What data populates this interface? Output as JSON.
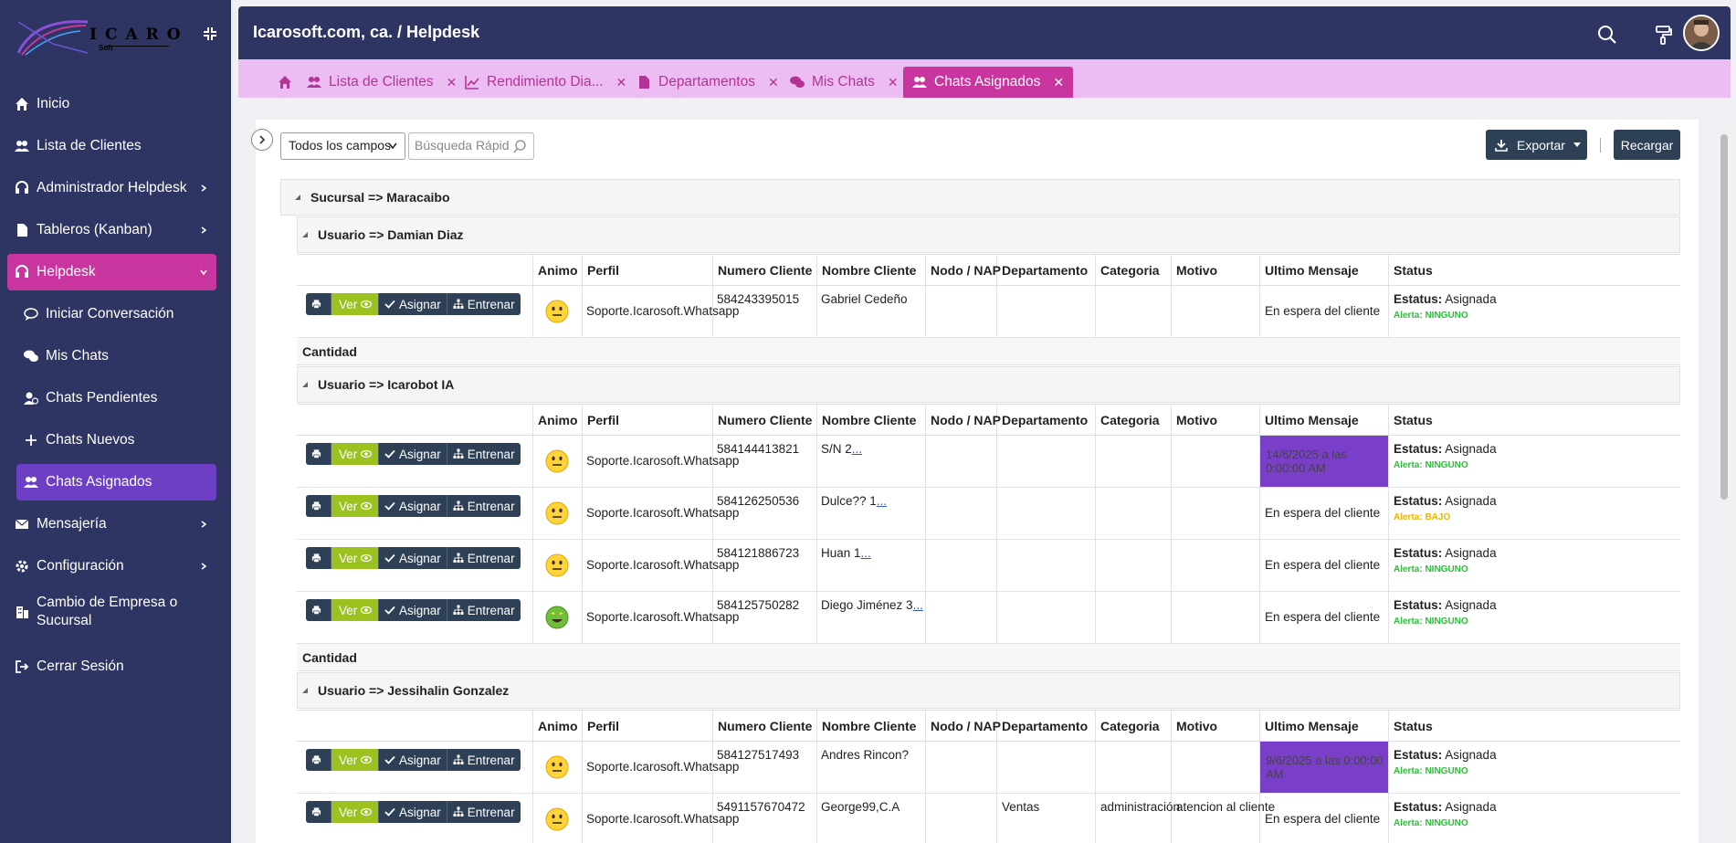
{
  "brand": {
    "logo_text": "ICARO",
    "logo_sub": "Soft"
  },
  "sidebar": {
    "items": [
      {
        "label": "Inicio",
        "icon": "home-icon"
      },
      {
        "label": "Lista de Clientes",
        "icon": "users-icon"
      },
      {
        "label": "Administrador Helpdesk",
        "icon": "headset-icon"
      },
      {
        "label": "Tableros (Kanban)",
        "icon": "file-icon"
      },
      {
        "label": "Helpdesk",
        "icon": "headset-icon"
      },
      {
        "label": "Iniciar Conversación",
        "icon": "comment-icon"
      },
      {
        "label": "Mis Chats",
        "icon": "comments-icon"
      },
      {
        "label": "Chats Pendientes",
        "icon": "user-clock-icon"
      },
      {
        "label": "Chats Nuevos",
        "icon": "plus-icon"
      },
      {
        "label": "Chats Asignados",
        "icon": "user-group-icon"
      },
      {
        "label": "Mensajería",
        "icon": "envelope-icon"
      },
      {
        "label": "Configuración",
        "icon": "gear-icon"
      },
      {
        "label": "Cambio de Empresa o Sucursal",
        "icon": "building-icon"
      },
      {
        "label": "Cerrar Sesión",
        "icon": "logout-icon"
      }
    ]
  },
  "header": {
    "breadcrumb": "Icarosoft.com, ca. / Helpdesk"
  },
  "tabs": [
    {
      "label": "",
      "icon": "home-icon"
    },
    {
      "label": "Lista de Clientes",
      "icon": "users-icon"
    },
    {
      "label": "Rendimiento Dia...",
      "icon": "chart-line-icon"
    },
    {
      "label": "Departamentos",
      "icon": "file-icon"
    },
    {
      "label": "Mis Chats",
      "icon": "comments-icon"
    },
    {
      "label": "Chats Asignados",
      "icon": "user-group-icon"
    }
  ],
  "toolbar": {
    "field_select": "Todos los campos",
    "search_placeholder": "Búsqueda Rápid",
    "export_label": "Exportar",
    "reload_label": "Recargar"
  },
  "grid": {
    "group": "Sucursal => Maracaibo",
    "columns": [
      "Animo",
      "Perfil",
      "Numero Cliente",
      "Nombre Cliente",
      "Nodo / NAP",
      "Departamento",
      "Categoria",
      "Motivo",
      "Ultimo Mensaje",
      "Status"
    ],
    "row_buttons": {
      "ver": "Ver",
      "asignar": "Asignar",
      "entrenar": "Entrenar"
    },
    "footer_label": "Cantidad",
    "status_label": "Estatus:",
    "users": [
      {
        "title": "Usuario => Damian Diaz",
        "rows": [
          {
            "animo": "neutral",
            "perfil": "Soporte.Icarosoft.Whatsapp",
            "numero": "584243395015",
            "nombre": "Gabriel Cedeño",
            "nombre_link": "",
            "nodo": "",
            "departamento": "",
            "categoria": "",
            "motivo": "",
            "ultimo": "En espera del cliente",
            "ultimo_highlight": false,
            "estatus": "Asignada",
            "alerta": "Alerta: NINGUNO",
            "alert_color": "#2dbe3a"
          }
        ]
      },
      {
        "title": "Usuario => Icarobot IA",
        "rows": [
          {
            "animo": "neutral",
            "perfil": "Soporte.Icarosoft.Whatsapp",
            "numero": "584144413821",
            "nombre": "S/N 2",
            "nombre_link": "...",
            "nodo": "",
            "departamento": "",
            "categoria": "",
            "motivo": "",
            "ultimo": "14/6/2025 a las 0:00:00 AM",
            "ultimo_highlight": true,
            "estatus": "Asignada",
            "alerta": "Alerta: NINGUNO",
            "alert_color": "#2dbe3a"
          },
          {
            "animo": "neutral",
            "perfil": "Soporte.Icarosoft.Whatsapp",
            "numero": "584126250536",
            "nombre": "Dulce?? 1",
            "nombre_link": "...",
            "nodo": "",
            "departamento": "",
            "categoria": "",
            "motivo": "",
            "ultimo": "En espera del cliente",
            "ultimo_highlight": false,
            "estatus": "Asignada",
            "alerta": "Alerta: BAJO",
            "alert_color": "#f0b400"
          },
          {
            "animo": "neutral",
            "perfil": "Soporte.Icarosoft.Whatsapp",
            "numero": "584121886723",
            "nombre": "Huan 1",
            "nombre_link": "...",
            "nodo": "",
            "departamento": "",
            "categoria": "",
            "motivo": "",
            "ultimo": "En espera del cliente",
            "ultimo_highlight": false,
            "estatus": "Asignada",
            "alerta": "Alerta: NINGUNO",
            "alert_color": "#2dbe3a"
          },
          {
            "animo": "happy",
            "perfil": "Soporte.Icarosoft.Whatsapp",
            "numero": "584125750282",
            "nombre": "Diego Jiménez 3",
            "nombre_link": "...",
            "nodo": "",
            "departamento": "",
            "categoria": "",
            "motivo": "",
            "ultimo": "En espera del cliente",
            "ultimo_highlight": false,
            "estatus": "Asignada",
            "alerta": "Alerta: NINGUNO",
            "alert_color": "#2dbe3a"
          }
        ]
      },
      {
        "title": "Usuario => Jessihalin Gonzalez",
        "rows": [
          {
            "animo": "neutral",
            "perfil": "Soporte.Icarosoft.Whatsapp",
            "numero": "584127517493",
            "nombre": "Andres Rincon?",
            "nombre_link": "",
            "nodo": "",
            "departamento": "",
            "categoria": "",
            "motivo": "",
            "ultimo": "9/6/2025 a las 0:00:00 AM",
            "ultimo_highlight": true,
            "estatus": "Asignada",
            "alerta": "Alerta: NINGUNO",
            "alert_color": "#2dbe3a"
          },
          {
            "animo": "neutral",
            "perfil": "Soporte.Icarosoft.Whatsapp",
            "numero": "5491157670472",
            "nombre": "George99,C.A",
            "nombre_link": "",
            "nodo": "",
            "departamento": "Ventas",
            "categoria": "administración",
            "motivo": "atencion al cliente",
            "ultimo": "En espera del cliente",
            "ultimo_highlight": false,
            "estatus": "Asignada",
            "alerta": "Alerta: NINGUNO",
            "alert_color": "#2dbe3a"
          }
        ]
      }
    ]
  },
  "colors": {
    "sidebar_bg": "#2e3562",
    "active_pink": "#c8359e",
    "active_purple": "#6c3fc4",
    "tabbar_bg": "#ecbdf2",
    "ver_green": "#9bc21f",
    "highlight_purple": "#7a3fc8"
  }
}
